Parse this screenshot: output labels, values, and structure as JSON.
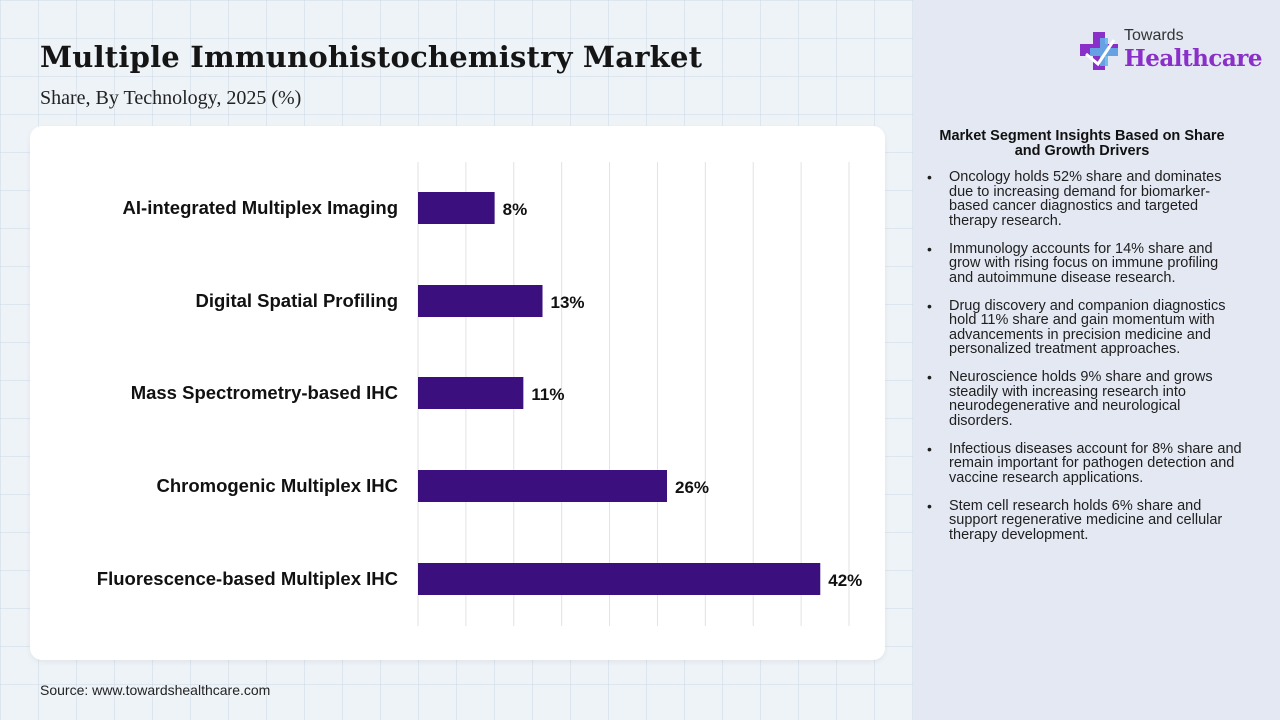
{
  "header": {
    "title": "Multiple Immunohistochemistry Market",
    "subtitle": "Share, By Technology, 2025 (%)"
  },
  "logo": {
    "line1": "Towards",
    "line2": "Healthcare",
    "icon": "medical-cross-icon"
  },
  "chart_data": {
    "type": "bar",
    "orientation": "horizontal",
    "categories": [
      "AI-integrated Multiplex Imaging",
      "Digital Spatial Profiling",
      "Mass Spectrometry-based IHC",
      "Chromogenic Multiplex IHC",
      "Fluorescence-based Multiplex IHC"
    ],
    "values": [
      8,
      13,
      11,
      26,
      42
    ],
    "value_labels": [
      "8%",
      "13%",
      "11%",
      "26%",
      "42%"
    ],
    "unit": "%",
    "xlim": [
      0,
      45
    ],
    "grid": true,
    "legend": "none",
    "bar_color": "#3b0f7e"
  },
  "insights": {
    "title": "Market Segment Insights Based on Share and Growth Drivers",
    "items": [
      "Oncology holds 52% share and dominates due to increasing demand for biomarker-based cancer diagnostics and targeted therapy research.",
      "Immunology accounts for 14% share and grow with rising focus on immune profiling and autoimmune disease research.",
      "Drug discovery and companion diagnostics hold 11% share and gain momentum with advancements in precision medicine and personalized treatment approaches.",
      "Neuroscience holds 9% share and grows steadily with increasing research into neurodegenerative and neurological disorders.",
      "Infectious diseases account for 8% share and remain important for pathogen detection and vaccine research applications.",
      "Stem cell research holds 6% share and support regenerative medicine and cellular therapy development."
    ]
  },
  "footer": {
    "source": "Source: www.towardshealthcare.com"
  }
}
